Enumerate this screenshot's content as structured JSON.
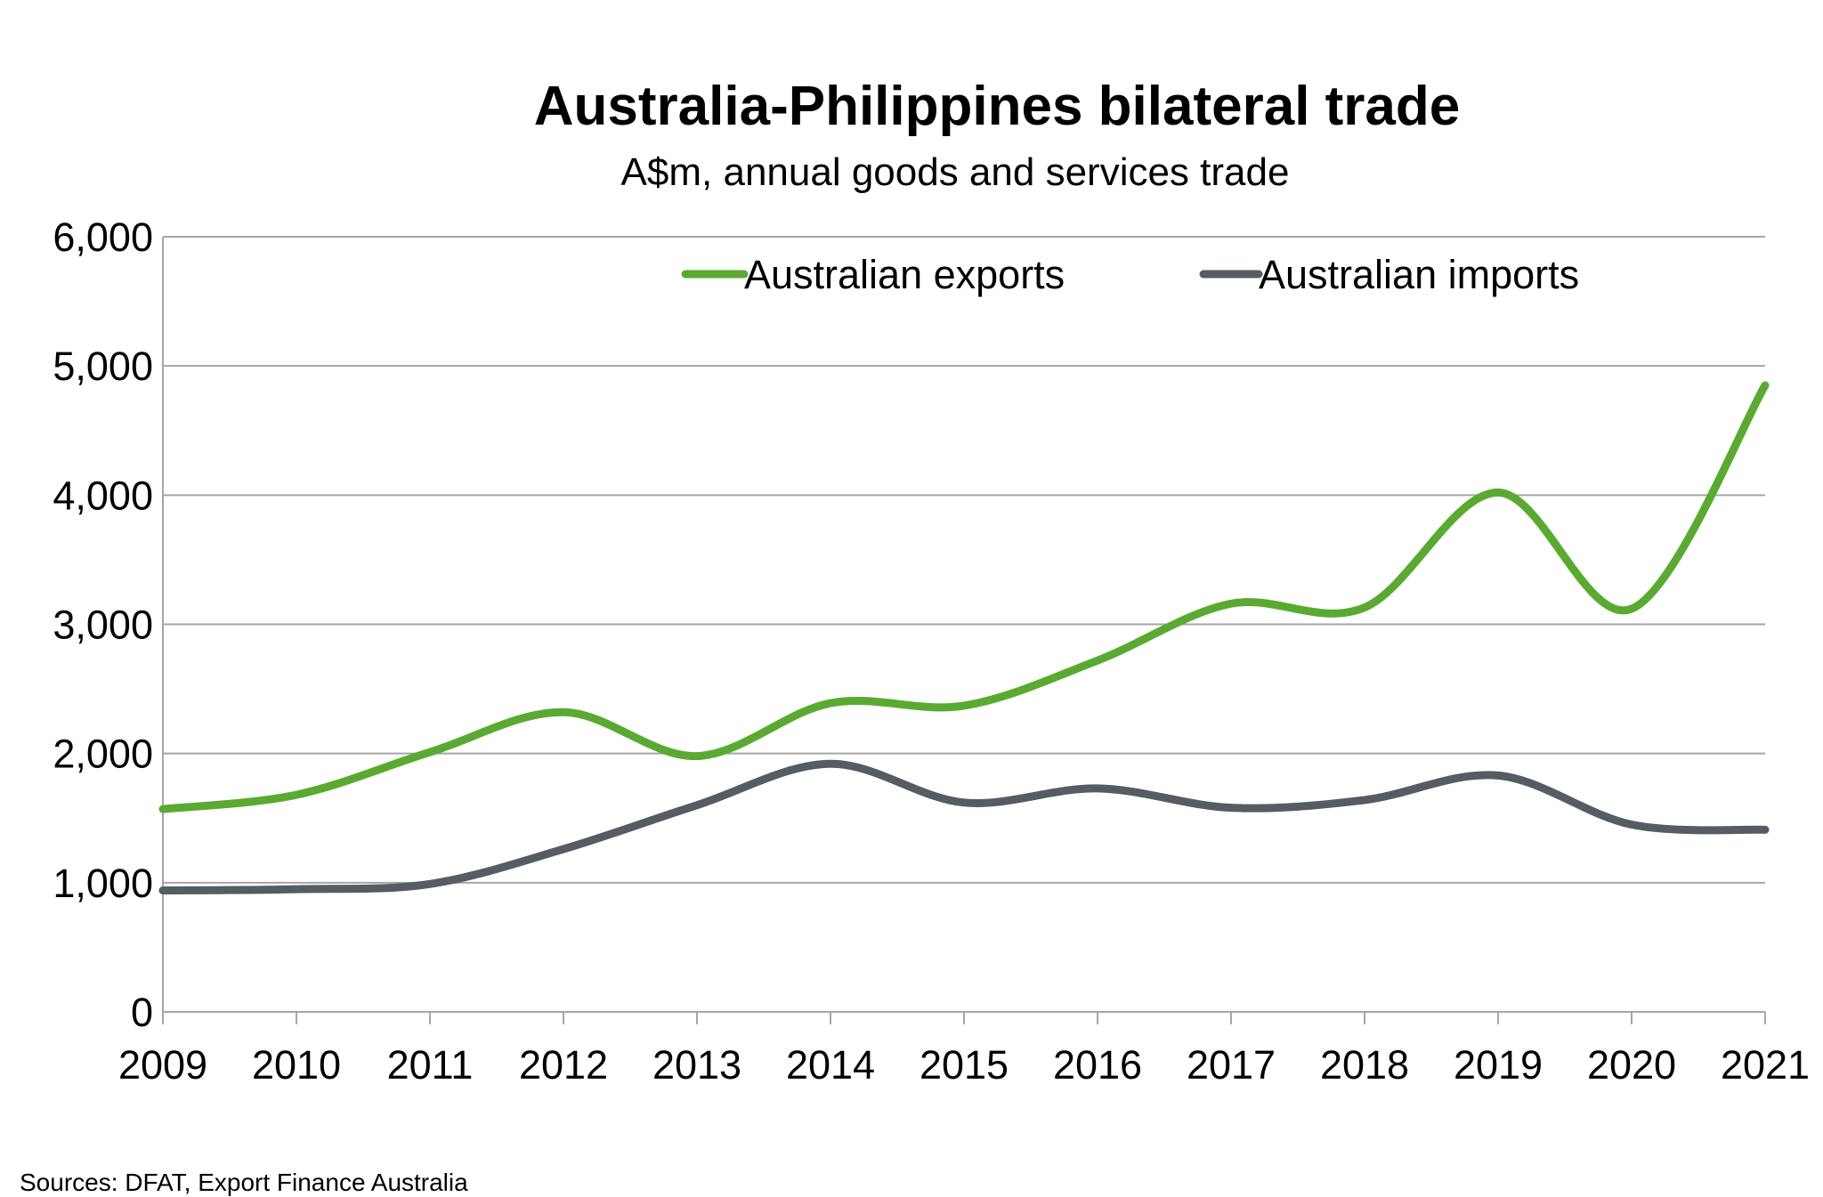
{
  "chart_data": {
    "type": "line",
    "title": "Australia-Philippines bilateral trade",
    "subtitle": "A$m, annual goods and services trade",
    "x": [
      "2009",
      "2010",
      "2011",
      "2012",
      "2013",
      "2014",
      "2015",
      "2016",
      "2017",
      "2018",
      "2019",
      "2020",
      "2021"
    ],
    "series": [
      {
        "name": "Australian exports",
        "color": "#5aaa32",
        "values": [
          1570,
          1680,
          2010,
          2320,
          1980,
          2390,
          2370,
          2720,
          3160,
          3130,
          4020,
          3120,
          4850
        ]
      },
      {
        "name": "Australian imports",
        "color": "#555c63",
        "values": [
          940,
          950,
          990,
          1260,
          1600,
          1920,
          1620,
          1730,
          1580,
          1640,
          1830,
          1450,
          1410
        ]
      }
    ],
    "ylim": [
      0,
      6000
    ],
    "yticks": [
      "0",
      "1,000",
      "2,000",
      "3,000",
      "4,000",
      "5,000",
      "6,000"
    ],
    "grid": true,
    "legend": "top-right",
    "source": "Sources: DFAT, Export Finance Australia"
  }
}
